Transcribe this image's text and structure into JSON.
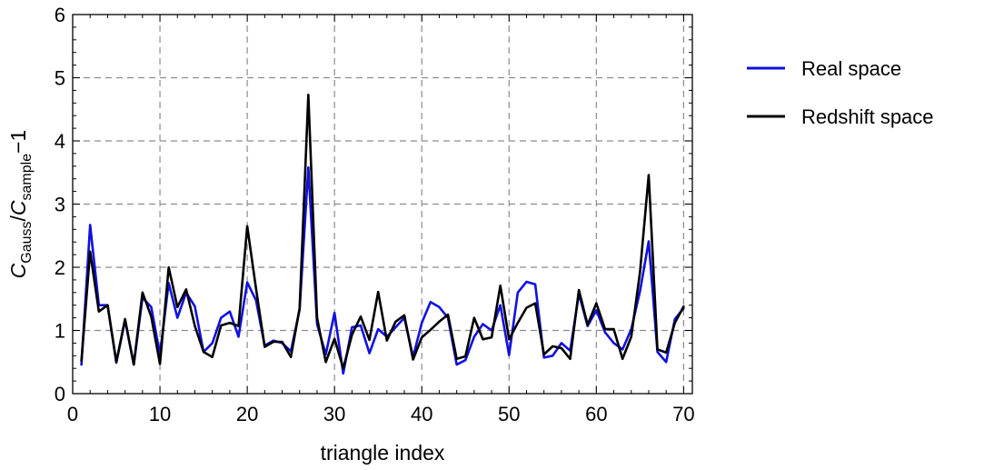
{
  "chart_data": {
    "type": "line",
    "xlabel": "triangle index",
    "ylabel": {
      "main": "C",
      "sub1": "Gauss",
      "sep": "/",
      "sub2": "sample",
      "suffix": "−1"
    },
    "xlim": [
      0,
      71
    ],
    "ylim": [
      0,
      6
    ],
    "xticks": [
      0,
      10,
      20,
      30,
      40,
      50,
      60,
      70
    ],
    "yticks": [
      0,
      1,
      2,
      3,
      4,
      5,
      6
    ],
    "xminor_step": 2,
    "yminor_step": 0.2,
    "grid": true,
    "legend_position": "right",
    "x": [
      1,
      2,
      3,
      4,
      5,
      6,
      7,
      8,
      9,
      10,
      11,
      12,
      13,
      14,
      15,
      16,
      17,
      18,
      19,
      20,
      21,
      22,
      23,
      24,
      25,
      26,
      27,
      28,
      29,
      30,
      31,
      32,
      33,
      34,
      35,
      36,
      37,
      38,
      39,
      40,
      41,
      42,
      43,
      44,
      45,
      46,
      47,
      48,
      49,
      50,
      51,
      52,
      53,
      54,
      55,
      56,
      57,
      58,
      59,
      60,
      61,
      62,
      63,
      64,
      65,
      66,
      67,
      68,
      69,
      70
    ],
    "series": [
      {
        "name": "Real space",
        "color": "#1010e0",
        "values": [
          0.46,
          2.67,
          1.4,
          1.4,
          0.49,
          1.16,
          0.46,
          1.52,
          1.37,
          0.62,
          1.75,
          1.2,
          1.6,
          1.38,
          0.66,
          0.8,
          1.2,
          1.3,
          0.9,
          1.76,
          1.48,
          0.76,
          0.84,
          0.8,
          0.67,
          1.33,
          3.58,
          1.1,
          0.62,
          1.28,
          0.32,
          1.05,
          1.08,
          0.64,
          1.02,
          0.9,
          1.05,
          1.2,
          0.58,
          1.12,
          1.45,
          1.37,
          1.2,
          0.46,
          0.53,
          0.9,
          1.1,
          1.0,
          1.4,
          0.61,
          1.6,
          1.77,
          1.73,
          0.57,
          0.6,
          0.8,
          0.68,
          1.58,
          1.07,
          1.32,
          0.97,
          0.8,
          0.7,
          1.02,
          1.62,
          2.41,
          0.66,
          0.5,
          1.18,
          1.35
        ]
      },
      {
        "name": "Redshift space",
        "color": "#000000",
        "values": [
          0.52,
          2.25,
          1.3,
          1.4,
          0.5,
          1.18,
          0.46,
          1.6,
          1.22,
          0.47,
          2.0,
          1.37,
          1.65,
          1.07,
          0.66,
          0.58,
          1.08,
          1.12,
          1.07,
          2.65,
          1.67,
          0.74,
          0.82,
          0.82,
          0.58,
          1.35,
          4.73,
          1.2,
          0.5,
          0.87,
          0.4,
          0.93,
          1.22,
          0.85,
          1.61,
          0.84,
          1.14,
          1.24,
          0.54,
          0.89,
          1.01,
          1.14,
          1.25,
          0.55,
          0.59,
          1.2,
          0.86,
          0.89,
          1.71,
          0.86,
          1.12,
          1.36,
          1.43,
          0.62,
          0.75,
          0.72,
          0.55,
          1.64,
          1.09,
          1.43,
          1.02,
          1.02,
          0.55,
          0.9,
          1.92,
          3.46,
          0.7,
          0.65,
          1.12,
          1.38
        ]
      }
    ]
  }
}
